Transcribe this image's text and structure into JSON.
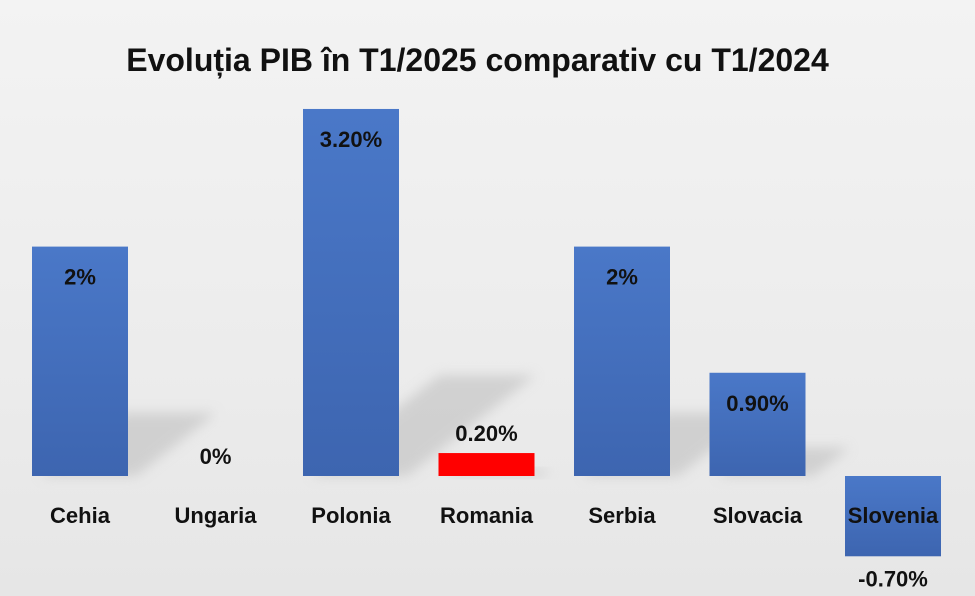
{
  "chart_data": {
    "type": "bar",
    "title": "Evoluția PIB în T1/2025 comparativ cu T1/2024",
    "categories": [
      "Cehia",
      "Ungaria",
      "Polonia",
      "Romania",
      "Serbia",
      "Slovacia",
      "Slovenia"
    ],
    "values": [
      2,
      0,
      3.2,
      0.2,
      2,
      0.9,
      -0.7
    ],
    "data_labels": [
      "2%",
      "0%",
      "3.20%",
      "0.20%",
      "2%",
      "0.90%",
      "-0.70%"
    ],
    "xlabel": "",
    "ylabel": "",
    "ylim": [
      -0.7,
      3.2
    ],
    "grid": false,
    "legend": "none",
    "colors": {
      "bar": "#4472c4",
      "highlight": "#ff0000",
      "highlight_category": "Romania",
      "text": "#111111"
    }
  }
}
